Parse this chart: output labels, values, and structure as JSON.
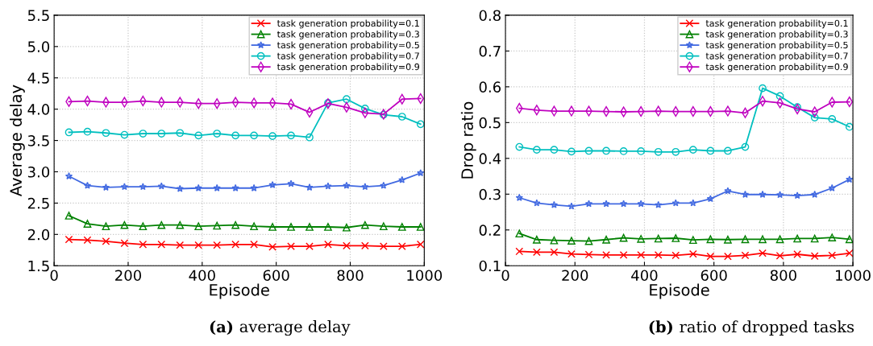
{
  "chart_data": [
    {
      "type": "line",
      "xlabel": "Episode",
      "ylabel": "Average delay",
      "annotations": [
        "(a) average delay"
      ],
      "x": [
        40,
        90,
        140,
        190,
        240,
        290,
        340,
        390,
        440,
        490,
        540,
        590,
        640,
        690,
        740,
        790,
        840,
        890,
        940,
        990
      ],
      "xlim": [
        0,
        1000
      ],
      "xticks": [
        0,
        200,
        400,
        600,
        800,
        1000
      ],
      "ylim": [
        1.5,
        5.5
      ],
      "yticks": [
        1.5,
        {
          "value": 2,
          "label": "2.0"
        },
        2.5,
        {
          "value": 3,
          "label": "3.0"
        },
        3.5,
        {
          "value": 4,
          "label": "4.0"
        },
        4.5,
        {
          "value": 5,
          "label": "5.0"
        },
        5.5
      ],
      "grid": true,
      "legend": "top right",
      "series": [
        {
          "name": "task generation probability=0.1",
          "color": "#ff0000",
          "marker": "cross",
          "values": [
            1.92,
            1.91,
            1.89,
            1.86,
            1.84,
            1.84,
            1.83,
            1.83,
            1.83,
            1.84,
            1.84,
            1.8,
            1.81,
            1.81,
            1.84,
            1.82,
            1.82,
            1.81,
            1.81,
            1.84
          ]
        },
        {
          "name": "task generation probability=0.3",
          "color": "#008000",
          "marker": "triangle",
          "values": [
            2.3,
            2.17,
            2.13,
            2.15,
            2.13,
            2.15,
            2.15,
            2.13,
            2.14,
            2.15,
            2.13,
            2.12,
            2.12,
            2.12,
            2.12,
            2.11,
            2.15,
            2.13,
            2.12,
            2.12
          ]
        },
        {
          "name": "task generation probability=0.5",
          "color": "#4169e1",
          "marker": "star",
          "values": [
            2.93,
            2.78,
            2.75,
            2.76,
            2.76,
            2.77,
            2.73,
            2.74,
            2.74,
            2.74,
            2.74,
            2.79,
            2.81,
            2.75,
            2.77,
            2.78,
            2.76,
            2.78,
            2.87,
            2.98
          ]
        },
        {
          "name": "task generation probability=0.7",
          "color": "#00bfbf",
          "marker": "circle",
          "values": [
            3.63,
            3.64,
            3.62,
            3.59,
            3.61,
            3.61,
            3.62,
            3.58,
            3.61,
            3.58,
            3.58,
            3.57,
            3.58,
            3.55,
            4.1,
            4.16,
            4.01,
            3.91,
            3.88,
            3.76
          ]
        },
        {
          "name": "task generation probability=0.9",
          "color": "#bf00bf",
          "marker": "diamond",
          "values": [
            4.12,
            4.13,
            4.11,
            4.11,
            4.13,
            4.11,
            4.11,
            4.09,
            4.09,
            4.11,
            4.1,
            4.1,
            4.08,
            3.95,
            4.09,
            4.03,
            3.94,
            3.92,
            4.16,
            4.17
          ]
        }
      ]
    },
    {
      "type": "line",
      "xlabel": "Episode",
      "ylabel": "Drop ratio",
      "annotations": [
        "(b) ratio of dropped tasks"
      ],
      "x": [
        40,
        90,
        140,
        190,
        240,
        290,
        340,
        390,
        440,
        490,
        540,
        590,
        640,
        690,
        740,
        790,
        840,
        890,
        940,
        990
      ],
      "xlim": [
        0,
        1000
      ],
      "xticks": [
        0,
        200,
        400,
        600,
        800,
        1000
      ],
      "ylim": [
        0.1,
        0.8
      ],
      "yticks": [
        0.1,
        0.2,
        0.3,
        0.4,
        0.5,
        0.6,
        0.7,
        0.8
      ],
      "grid": true,
      "legend": "top right",
      "series": [
        {
          "name": "task generation probability=0.1",
          "color": "#ff0000",
          "marker": "cross",
          "values": [
            0.14,
            0.138,
            0.138,
            0.133,
            0.131,
            0.13,
            0.13,
            0.13,
            0.13,
            0.129,
            0.133,
            0.126,
            0.126,
            0.129,
            0.135,
            0.128,
            0.132,
            0.127,
            0.129,
            0.135
          ]
        },
        {
          "name": "task generation probability=0.3",
          "color": "#008000",
          "marker": "triangle",
          "values": [
            0.19,
            0.173,
            0.171,
            0.17,
            0.169,
            0.173,
            0.178,
            0.175,
            0.176,
            0.177,
            0.172,
            0.174,
            0.173,
            0.174,
            0.174,
            0.174,
            0.176,
            0.176,
            0.179,
            0.174
          ]
        },
        {
          "name": "task generation probability=0.5",
          "color": "#4169e1",
          "marker": "star",
          "values": [
            0.29,
            0.275,
            0.27,
            0.266,
            0.273,
            0.273,
            0.273,
            0.273,
            0.27,
            0.275,
            0.275,
            0.287,
            0.309,
            0.299,
            0.299,
            0.298,
            0.296,
            0.299,
            0.317,
            0.341
          ]
        },
        {
          "name": "task generation probability=0.7",
          "color": "#00bfbf",
          "marker": "circle",
          "values": [
            0.432,
            0.424,
            0.424,
            0.419,
            0.421,
            0.421,
            0.42,
            0.42,
            0.418,
            0.418,
            0.424,
            0.421,
            0.421,
            0.432,
            0.596,
            0.574,
            0.543,
            0.514,
            0.51,
            0.488
          ]
        },
        {
          "name": "task generation probability=0.9",
          "color": "#bf00bf",
          "marker": "diamond",
          "values": [
            0.54,
            0.535,
            0.532,
            0.532,
            0.532,
            0.531,
            0.53,
            0.531,
            0.532,
            0.531,
            0.531,
            0.531,
            0.532,
            0.527,
            0.56,
            0.555,
            0.538,
            0.53,
            0.557,
            0.558
          ]
        }
      ]
    }
  ]
}
